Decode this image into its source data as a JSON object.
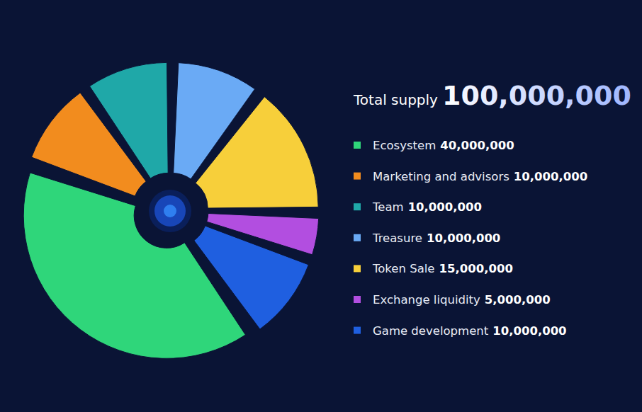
{
  "chart_data": {
    "type": "pie",
    "title": "Total supply",
    "total": 100000000,
    "total_label": "100,000,000",
    "categories": [
      "Ecosystem",
      "Marketing and advisors",
      "Team",
      "Treasure",
      "Token Sale",
      "Exchange liquidity",
      "Game development"
    ],
    "values": [
      40000000,
      10000000,
      10000000,
      10000000,
      15000000,
      5000000,
      10000000
    ],
    "value_labels": [
      "40,000,000",
      "10,000,000",
      "10,000,000",
      "10,000,000",
      "15,000,000",
      "5,000,000",
      "10,000,000"
    ],
    "colors": [
      "#2fd67a",
      "#f28c1e",
      "#1fa8a8",
      "#6aaaf5",
      "#f7cf3a",
      "#b24ee0",
      "#1f5fe0"
    ],
    "legend": "right"
  }
}
